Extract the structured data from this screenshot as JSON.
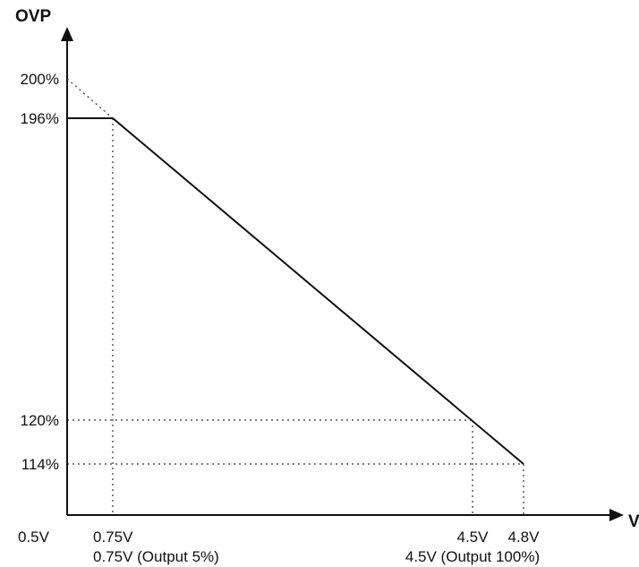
{
  "chart_data": {
    "type": "line",
    "xlabel": "VCI",
    "ylabel": "OVP",
    "x_unit": "V",
    "y_unit": "%",
    "xlim": [
      0.5,
      5.2
    ],
    "ylim": [
      100,
      215
    ],
    "series": [
      {
        "values": [
          {
            "x": 0.5,
            "y": 196
          },
          {
            "x": 0.75,
            "y": 196
          },
          {
            "x": 4.8,
            "y": 114
          }
        ]
      }
    ],
    "extrapolation": [
      {
        "x": 0.5,
        "y": 200
      },
      {
        "x": 0.75,
        "y": 196
      }
    ],
    "x_ticks": [
      {
        "value": 0.5,
        "label": "0.5V"
      },
      {
        "value": 0.75,
        "label": "0.75V"
      },
      {
        "value": 4.5,
        "label": "4.5V"
      },
      {
        "value": 4.8,
        "label": "4.8V"
      }
    ],
    "y_ticks": [
      {
        "value": 200,
        "label": "200%"
      },
      {
        "value": 196,
        "label": "196%"
      },
      {
        "value": 120,
        "label": "120%"
      },
      {
        "value": 114,
        "label": "114%"
      }
    ],
    "reference_lines": [
      {
        "x": 0.75,
        "y": 196
      },
      {
        "x": 4.5,
        "y": 120
      },
      {
        "x": 4.8,
        "y": 114
      }
    ],
    "annotations": [
      {
        "x": 0.75,
        "text": "0.75V (Output 5%)"
      },
      {
        "x": 4.5,
        "text": "4.5V (Output 100%)"
      }
    ]
  }
}
